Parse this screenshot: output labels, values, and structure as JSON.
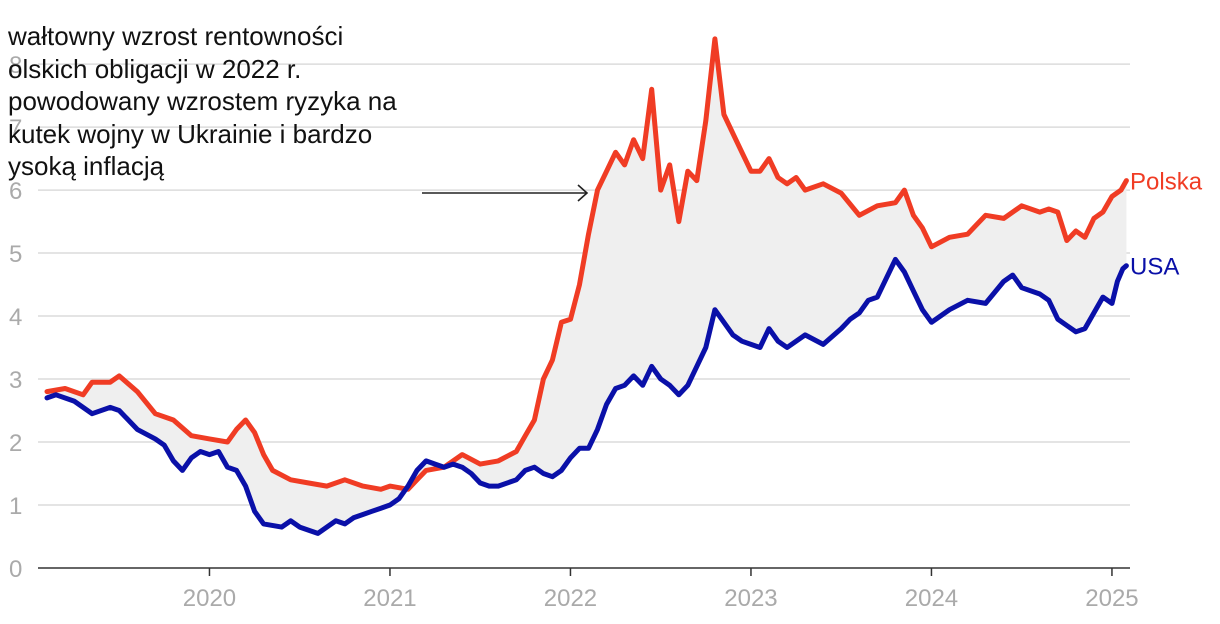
{
  "chart_data": {
    "type": "line",
    "y_ticks": [
      0,
      1,
      2,
      3,
      4,
      5,
      6,
      7,
      8
    ],
    "ylim": [
      0,
      8.7
    ],
    "xlim": [
      2019.05,
      2025.1
    ],
    "x_ticks": [
      2020,
      2021,
      2022,
      2023,
      2024,
      2025
    ],
    "x_tick_labels": [
      "2020",
      "2021",
      "2022",
      "2023",
      "2024",
      "2025"
    ],
    "grid": true,
    "legend_placement": "right end labels",
    "band_between_series": true,
    "series": [
      {
        "name": "Polska",
        "color": "#f03c24",
        "points": [
          [
            2019.1,
            2.8
          ],
          [
            2019.2,
            2.85
          ],
          [
            2019.3,
            2.75
          ],
          [
            2019.35,
            2.95
          ],
          [
            2019.45,
            2.95
          ],
          [
            2019.5,
            3.05
          ],
          [
            2019.6,
            2.8
          ],
          [
            2019.7,
            2.45
          ],
          [
            2019.8,
            2.35
          ],
          [
            2019.9,
            2.1
          ],
          [
            2020.0,
            2.05
          ],
          [
            2020.1,
            2.0
          ],
          [
            2020.15,
            2.2
          ],
          [
            2020.2,
            2.35
          ],
          [
            2020.25,
            2.15
          ],
          [
            2020.3,
            1.8
          ],
          [
            2020.35,
            1.55
          ],
          [
            2020.45,
            1.4
          ],
          [
            2020.55,
            1.35
          ],
          [
            2020.65,
            1.3
          ],
          [
            2020.75,
            1.4
          ],
          [
            2020.85,
            1.3
          ],
          [
            2020.95,
            1.25
          ],
          [
            2021.0,
            1.3
          ],
          [
            2021.1,
            1.25
          ],
          [
            2021.15,
            1.4
          ],
          [
            2021.2,
            1.55
          ],
          [
            2021.3,
            1.6
          ],
          [
            2021.4,
            1.8
          ],
          [
            2021.5,
            1.65
          ],
          [
            2021.6,
            1.7
          ],
          [
            2021.7,
            1.85
          ],
          [
            2021.75,
            2.1
          ],
          [
            2021.8,
            2.35
          ],
          [
            2021.85,
            3.0
          ],
          [
            2021.9,
            3.3
          ],
          [
            2021.95,
            3.9
          ],
          [
            2022.0,
            3.95
          ],
          [
            2022.05,
            4.5
          ],
          [
            2022.1,
            5.3
          ],
          [
            2022.15,
            6.0
          ],
          [
            2022.2,
            6.3
          ],
          [
            2022.25,
            6.6
          ],
          [
            2022.3,
            6.4
          ],
          [
            2022.35,
            6.8
          ],
          [
            2022.4,
            6.5
          ],
          [
            2022.45,
            7.6
          ],
          [
            2022.5,
            6.0
          ],
          [
            2022.55,
            6.4
          ],
          [
            2022.6,
            5.5
          ],
          [
            2022.65,
            6.3
          ],
          [
            2022.7,
            6.15
          ],
          [
            2022.75,
            7.1
          ],
          [
            2022.8,
            8.4
          ],
          [
            2022.85,
            7.2
          ],
          [
            2022.9,
            6.9
          ],
          [
            2022.95,
            6.6
          ],
          [
            2023.0,
            6.3
          ],
          [
            2023.05,
            6.3
          ],
          [
            2023.1,
            6.5
          ],
          [
            2023.15,
            6.2
          ],
          [
            2023.2,
            6.1
          ],
          [
            2023.25,
            6.2
          ],
          [
            2023.3,
            6.0
          ],
          [
            2023.4,
            6.1
          ],
          [
            2023.5,
            5.95
          ],
          [
            2023.6,
            5.6
          ],
          [
            2023.7,
            5.75
          ],
          [
            2023.8,
            5.8
          ],
          [
            2023.85,
            6.0
          ],
          [
            2023.9,
            5.6
          ],
          [
            2023.95,
            5.4
          ],
          [
            2024.0,
            5.1
          ],
          [
            2024.1,
            5.25
          ],
          [
            2024.2,
            5.3
          ],
          [
            2024.25,
            5.45
          ],
          [
            2024.3,
            5.6
          ],
          [
            2024.4,
            5.55
          ],
          [
            2024.5,
            5.75
          ],
          [
            2024.6,
            5.65
          ],
          [
            2024.65,
            5.7
          ],
          [
            2024.7,
            5.65
          ],
          [
            2024.75,
            5.2
          ],
          [
            2024.8,
            5.35
          ],
          [
            2024.85,
            5.25
          ],
          [
            2024.9,
            5.55
          ],
          [
            2024.95,
            5.65
          ],
          [
            2025.0,
            5.9
          ],
          [
            2025.05,
            6.0
          ],
          [
            2025.08,
            6.15
          ]
        ]
      },
      {
        "name": "USA",
        "color": "#0a10a8",
        "points": [
          [
            2019.1,
            2.7
          ],
          [
            2019.15,
            2.75
          ],
          [
            2019.25,
            2.65
          ],
          [
            2019.35,
            2.45
          ],
          [
            2019.45,
            2.55
          ],
          [
            2019.5,
            2.5
          ],
          [
            2019.6,
            2.2
          ],
          [
            2019.7,
            2.05
          ],
          [
            2019.75,
            1.95
          ],
          [
            2019.8,
            1.7
          ],
          [
            2019.85,
            1.55
          ],
          [
            2019.9,
            1.75
          ],
          [
            2019.95,
            1.85
          ],
          [
            2020.0,
            1.8
          ],
          [
            2020.05,
            1.85
          ],
          [
            2020.1,
            1.6
          ],
          [
            2020.15,
            1.55
          ],
          [
            2020.2,
            1.3
          ],
          [
            2020.25,
            0.9
          ],
          [
            2020.3,
            0.7
          ],
          [
            2020.4,
            0.65
          ],
          [
            2020.45,
            0.75
          ],
          [
            2020.5,
            0.65
          ],
          [
            2020.55,
            0.6
          ],
          [
            2020.6,
            0.55
          ],
          [
            2020.7,
            0.75
          ],
          [
            2020.75,
            0.7
          ],
          [
            2020.8,
            0.8
          ],
          [
            2020.85,
            0.85
          ],
          [
            2020.9,
            0.9
          ],
          [
            2020.95,
            0.95
          ],
          [
            2021.0,
            1.0
          ],
          [
            2021.05,
            1.1
          ],
          [
            2021.1,
            1.3
          ],
          [
            2021.15,
            1.55
          ],
          [
            2021.2,
            1.7
          ],
          [
            2021.25,
            1.65
          ],
          [
            2021.3,
            1.6
          ],
          [
            2021.35,
            1.65
          ],
          [
            2021.4,
            1.6
          ],
          [
            2021.45,
            1.5
          ],
          [
            2021.5,
            1.35
          ],
          [
            2021.55,
            1.3
          ],
          [
            2021.6,
            1.3
          ],
          [
            2021.7,
            1.4
          ],
          [
            2021.75,
            1.55
          ],
          [
            2021.8,
            1.6
          ],
          [
            2021.85,
            1.5
          ],
          [
            2021.9,
            1.45
          ],
          [
            2021.95,
            1.55
          ],
          [
            2022.0,
            1.75
          ],
          [
            2022.05,
            1.9
          ],
          [
            2022.1,
            1.9
          ],
          [
            2022.15,
            2.2
          ],
          [
            2022.2,
            2.6
          ],
          [
            2022.25,
            2.85
          ],
          [
            2022.3,
            2.9
          ],
          [
            2022.35,
            3.05
          ],
          [
            2022.4,
            2.9
          ],
          [
            2022.45,
            3.2
          ],
          [
            2022.5,
            3.0
          ],
          [
            2022.55,
            2.9
          ],
          [
            2022.6,
            2.75
          ],
          [
            2022.65,
            2.9
          ],
          [
            2022.7,
            3.2
          ],
          [
            2022.75,
            3.5
          ],
          [
            2022.8,
            4.1
          ],
          [
            2022.85,
            3.9
          ],
          [
            2022.9,
            3.7
          ],
          [
            2022.95,
            3.6
          ],
          [
            2023.0,
            3.55
          ],
          [
            2023.05,
            3.5
          ],
          [
            2023.1,
            3.8
          ],
          [
            2023.15,
            3.6
          ],
          [
            2023.2,
            3.5
          ],
          [
            2023.3,
            3.7
          ],
          [
            2023.4,
            3.55
          ],
          [
            2023.5,
            3.8
          ],
          [
            2023.55,
            3.95
          ],
          [
            2023.6,
            4.05
          ],
          [
            2023.65,
            4.25
          ],
          [
            2023.7,
            4.3
          ],
          [
            2023.75,
            4.6
          ],
          [
            2023.8,
            4.9
          ],
          [
            2023.85,
            4.7
          ],
          [
            2023.9,
            4.4
          ],
          [
            2023.95,
            4.1
          ],
          [
            2024.0,
            3.9
          ],
          [
            2024.1,
            4.1
          ],
          [
            2024.2,
            4.25
          ],
          [
            2024.3,
            4.2
          ],
          [
            2024.4,
            4.55
          ],
          [
            2024.45,
            4.65
          ],
          [
            2024.5,
            4.45
          ],
          [
            2024.6,
            4.35
          ],
          [
            2024.65,
            4.25
          ],
          [
            2024.7,
            3.95
          ],
          [
            2024.75,
            3.85
          ],
          [
            2024.8,
            3.75
          ],
          [
            2024.85,
            3.8
          ],
          [
            2024.9,
            4.05
          ],
          [
            2024.95,
            4.3
          ],
          [
            2025.0,
            4.2
          ],
          [
            2025.03,
            4.55
          ],
          [
            2025.06,
            4.75
          ],
          [
            2025.08,
            4.8
          ]
        ]
      }
    ]
  },
  "annotation": {
    "text_lines": [
      "wałtowny wzrost rentowności",
      "olskich obligacji w 2022 r.",
      "powodowany wzrostem ryzyka na",
      "kutek wojny w Ukrainie i bardzo",
      "ysoką inflacją"
    ],
    "arrow_color": "#222222"
  },
  "colors": {
    "grid": "#dcdcdc",
    "axis": "#333333",
    "tick_text": "#aaaaaa",
    "band_fill": "#efefef"
  }
}
